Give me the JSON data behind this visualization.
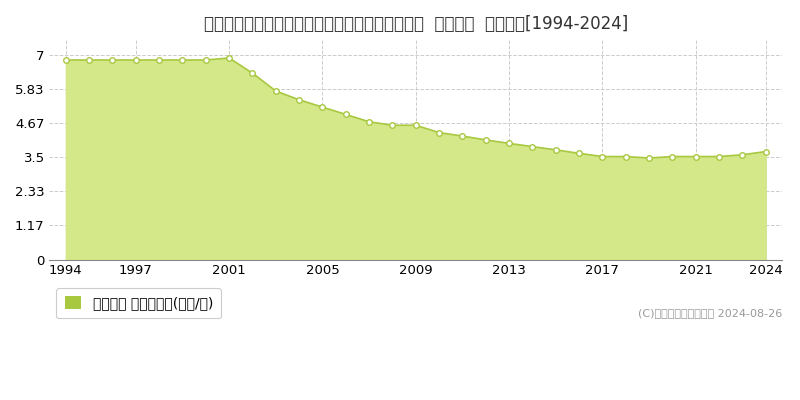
{
  "title": "新潟県上越市大字七ケ所新田字船場４４８番３外  地価公示  地価推移[1994-2024]",
  "years": [
    1994,
    1995,
    1996,
    1997,
    1998,
    1999,
    2000,
    2001,
    2002,
    2003,
    2004,
    2005,
    2006,
    2007,
    2008,
    2009,
    2010,
    2011,
    2012,
    2013,
    2014,
    2015,
    2016,
    2017,
    2018,
    2019,
    2020,
    2021,
    2022,
    2023,
    2024
  ],
  "values": [
    6.82,
    6.82,
    6.82,
    6.82,
    6.82,
    6.82,
    6.82,
    6.89,
    6.37,
    5.76,
    5.46,
    5.21,
    4.96,
    4.71,
    4.59,
    4.59,
    4.34,
    4.22,
    4.09,
    3.97,
    3.86,
    3.75,
    3.63,
    3.52,
    3.52,
    3.47,
    3.52,
    3.52,
    3.52,
    3.58,
    3.69
  ],
  "line_color": "#a8c840",
  "fill_color": "#d4e88a",
  "marker_color": "#ffffff",
  "marker_edge_color": "#a8c840",
  "yticks": [
    0,
    1.17,
    2.33,
    3.5,
    4.67,
    5.83,
    7
  ],
  "ytick_labels": [
    "0",
    "1.17",
    "2.33",
    "3.5",
    "4.67",
    "5.83",
    "7"
  ],
  "xticks": [
    1994,
    1997,
    2001,
    2005,
    2009,
    2013,
    2017,
    2021,
    2024
  ],
  "ylim": [
    0,
    7.5
  ],
  "xlim": [
    1993.3,
    2024.7
  ],
  "grid_color": "#cccccc",
  "background_color": "#ffffff",
  "legend_label": "地価公示 平均坪単価(万円/坪)",
  "copyright_text": "(C)土地価格ドットコム 2024-08-26",
  "title_fontsize": 12,
  "tick_fontsize": 9.5,
  "legend_fontsize": 10
}
